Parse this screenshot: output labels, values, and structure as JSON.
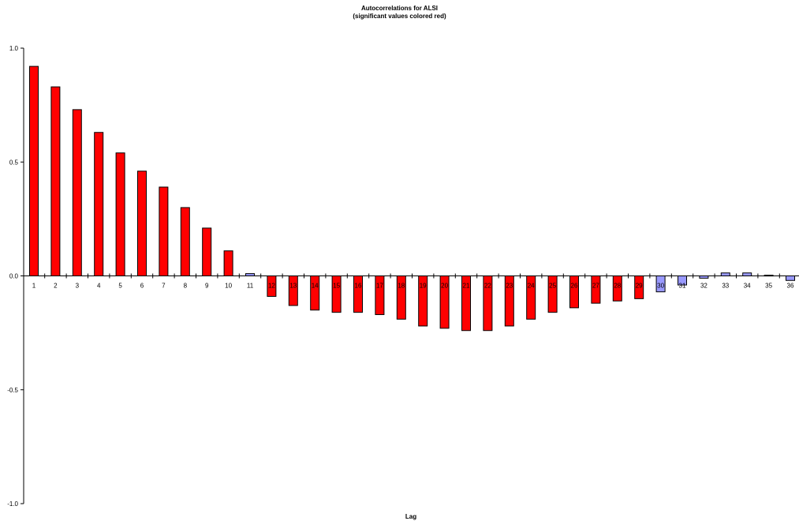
{
  "chart_data": {
    "type": "bar",
    "title": "Autocorrelations for ALSI",
    "subtitle": "(significant values colored red)",
    "xlabel": "Lag",
    "ylabel": "",
    "ylim": [
      -1.0,
      1.0
    ],
    "yticks": [
      "1.0",
      "0.5",
      "0.0",
      "-0.5",
      "-1.0"
    ],
    "ytick_values": [
      1.0,
      0.5,
      0.0,
      -0.5,
      -1.0
    ],
    "grid": false,
    "colors": {
      "significant": "#ff0000",
      "not_significant": "#9999ff",
      "outline": "#000000"
    },
    "categories": [
      "1",
      "2",
      "3",
      "4",
      "5",
      "6",
      "7",
      "8",
      "9",
      "10",
      "11",
      "12",
      "13",
      "14",
      "15",
      "16",
      "17",
      "18",
      "19",
      "20",
      "21",
      "22",
      "23",
      "24",
      "25",
      "26",
      "27",
      "28",
      "29",
      "30",
      "31",
      "32",
      "33",
      "34",
      "35",
      "36"
    ],
    "values": [
      0.92,
      0.83,
      0.73,
      0.63,
      0.54,
      0.46,
      0.39,
      0.3,
      0.21,
      0.11,
      0.01,
      -0.09,
      -0.13,
      -0.15,
      -0.16,
      -0.16,
      -0.17,
      -0.19,
      -0.22,
      -0.23,
      -0.24,
      -0.24,
      -0.22,
      -0.19,
      -0.16,
      -0.14,
      -0.12,
      -0.11,
      -0.1,
      -0.07,
      -0.04,
      -0.01,
      0.013,
      0.013,
      0.003,
      -0.02
    ],
    "significant": [
      true,
      true,
      true,
      true,
      true,
      true,
      true,
      true,
      true,
      true,
      false,
      true,
      true,
      true,
      true,
      true,
      true,
      true,
      true,
      true,
      true,
      true,
      true,
      true,
      true,
      true,
      true,
      true,
      true,
      false,
      false,
      false,
      false,
      false,
      false,
      false
    ]
  }
}
